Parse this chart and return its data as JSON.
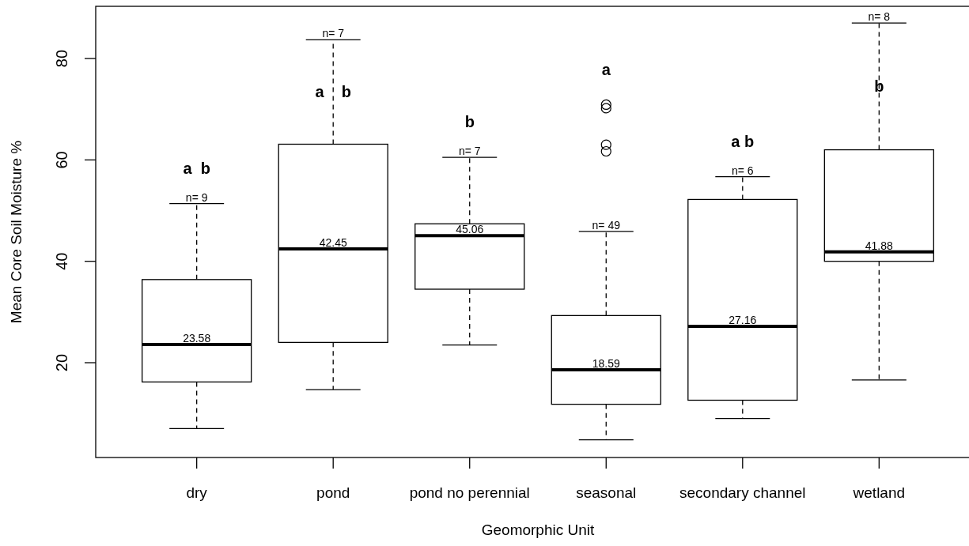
{
  "chart_data": {
    "type": "box",
    "xlabel": "Geomorphic Unit",
    "ylabel": "Mean Core Soil Moisture %",
    "categories": [
      "dry",
      "pond",
      "pond no perennial",
      "seasonal",
      "secondary channel",
      "wetland"
    ],
    "boxes": [
      {
        "low": 7.0,
        "q1": 16.2,
        "median": 23.58,
        "q3": 36.4,
        "high": 51.4
      },
      {
        "low": 14.7,
        "q1": 24.0,
        "median": 42.45,
        "q3": 63.1,
        "high": 83.7
      },
      {
        "low": 23.5,
        "q1": 34.5,
        "median": 45.06,
        "q3": 47.4,
        "high": 60.5
      },
      {
        "low": 4.8,
        "q1": 11.8,
        "median": 18.59,
        "q3": 29.3,
        "high": 45.9,
        "outliers": [
          70.9,
          70.2,
          63.0,
          61.7
        ]
      },
      {
        "low": 9.0,
        "q1": 12.6,
        "median": 27.16,
        "q3": 52.2,
        "high": 56.7
      },
      {
        "low": 16.6,
        "q1": 40.0,
        "median": 41.88,
        "q3": 62.0,
        "high": 87.0
      }
    ],
    "ylim": [
      1.3,
      90.3
    ],
    "yticks": [
      20,
      40,
      60,
      80
    ],
    "annotations": [
      {
        "text": "n= 9",
        "x": "dry",
        "y": 51.4
      },
      {
        "text": "n= 7",
        "x": "pond",
        "y": 83.7
      },
      {
        "text": "n= 7",
        "x": "pond no perennial",
        "y": 60.5
      },
      {
        "text": "n= 49",
        "x": "seasonal",
        "y": 45.9
      },
      {
        "text": "n= 6",
        "x": "secondary channel",
        "y": 56.7
      },
      {
        "text": "n= 8",
        "x": "wetland",
        "y": 87.0
      },
      {
        "text": "23.58",
        "x": "dry",
        "y": 23.58
      },
      {
        "text": "42.45",
        "x": "pond",
        "y": 42.45
      },
      {
        "text": "45.06",
        "x": "pond no perennial",
        "y": 45.06
      },
      {
        "text": "18.59",
        "x": "seasonal",
        "y": 18.59
      },
      {
        "text": "27.16",
        "x": "secondary channel",
        "y": 27.16
      },
      {
        "text": "41.88",
        "x": "wetland",
        "y": 41.88
      },
      "a  b",
      "a    b",
      "b",
      "a",
      "a b",
      "b"
    ]
  }
}
